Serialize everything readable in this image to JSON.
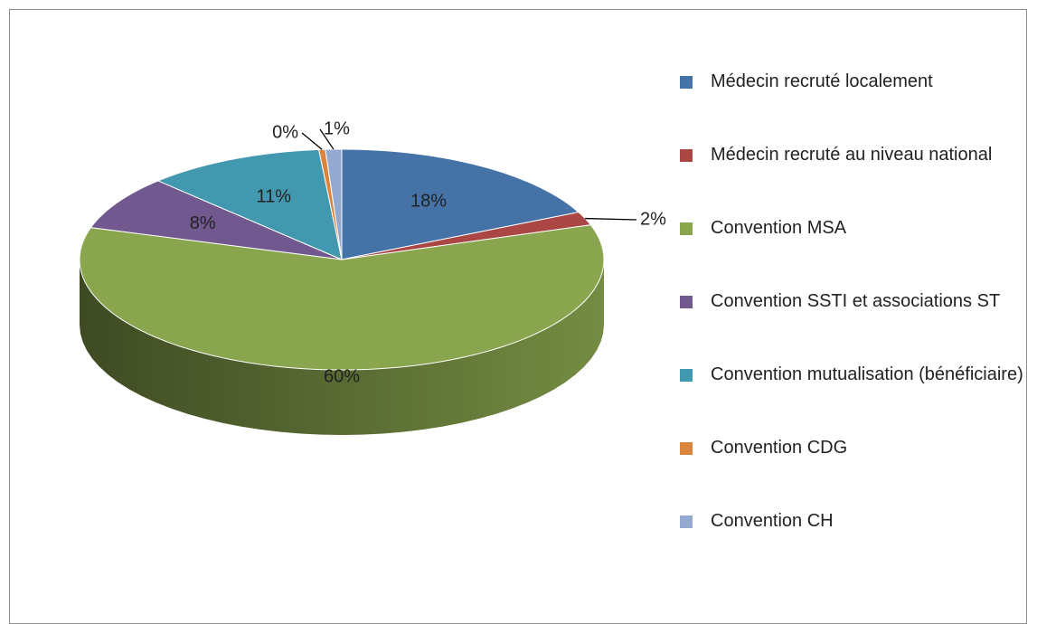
{
  "chart_data": {
    "type": "pie",
    "categories": [
      "Médecin recruté localement",
      "Médecin recruté au niveau national",
      "Convention MSA",
      "Convention SSTI et associations ST",
      "Convention mutualisation (bénéficiaire)",
      "Convention CDG",
      "Convention CH"
    ],
    "values": [
      18,
      2,
      60,
      8,
      11,
      0.4,
      1
    ],
    "value_labels": [
      "18%",
      "2%",
      "60%",
      "8%",
      "11%",
      "0%",
      "1%"
    ],
    "colors": [
      "#4572a7",
      "#aa4643",
      "#89a54e",
      "#71588f",
      "#4198af",
      "#db843d",
      "#93a9cf"
    ],
    "legend": "right"
  }
}
